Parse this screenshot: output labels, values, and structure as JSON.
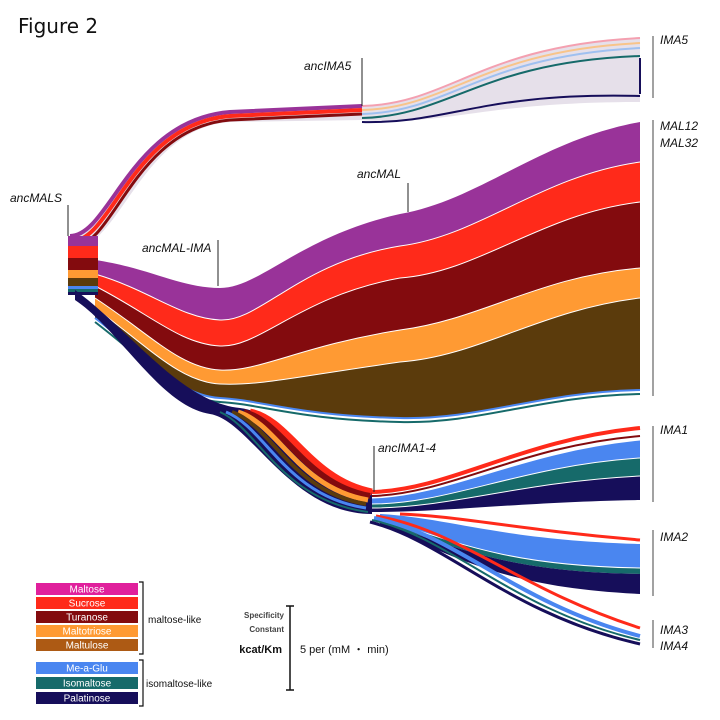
{
  "figure_title": "Figure 2",
  "nodes": {
    "ancMALS": "ancMALS",
    "ancIMA5": "ancIMA5",
    "ancMAL": "ancMAL",
    "ancMAL_IMA": "ancMAL-IMA",
    "ancIMA1_4": "ancIMA1-4"
  },
  "leaves": {
    "IMA5": "IMA5",
    "MAL12": "MAL12",
    "MAL32": "MAL32",
    "IMA1": "IMA1",
    "IMA2": "IMA2",
    "IMA3": "IMA3",
    "IMA4": "IMA4"
  },
  "substrates": [
    {
      "name": "Maltose",
      "color": "#e0209c",
      "group": "maltose-like"
    },
    {
      "name": "Sucrose",
      "color": "#ff2a1a",
      "group": "maltose-like"
    },
    {
      "name": "Turanose",
      "color": "#830b0e",
      "group": "maltose-like"
    },
    {
      "name": "Maltotriose",
      "color": "#ff9a33",
      "group": "maltose-like"
    },
    {
      "name": "Maltulose",
      "color": "#ad5a14",
      "group": "maltose-like"
    },
    {
      "name": "Me-a-Glu",
      "color": "#4a86f0",
      "group": "isomaltose-like"
    },
    {
      "name": "Isomaltose",
      "color": "#166a6a",
      "group": "isomaltose-like"
    },
    {
      "name": "Palatinose",
      "color": "#160e5a",
      "group": "isomaltose-like"
    }
  ],
  "groups": {
    "maltose_like": "maltose-like",
    "isomaltose_like": "isomaltose-like"
  },
  "scale": {
    "line1": "Specificity",
    "line2": "Constant",
    "kcat": "kcat/Km",
    "unit": "5 per (mM ・ min)"
  },
  "colors": {
    "mal_purple": "#993399",
    "mal_red": "#ff2a1a",
    "mal_darkred": "#830b0e",
    "mal_orange": "#ff9a33",
    "mal_brown": "#5b3b0c",
    "ima_blue": "#4a86f0",
    "ima_teal": "#166a6a",
    "ima_navy": "#160e5a"
  }
}
